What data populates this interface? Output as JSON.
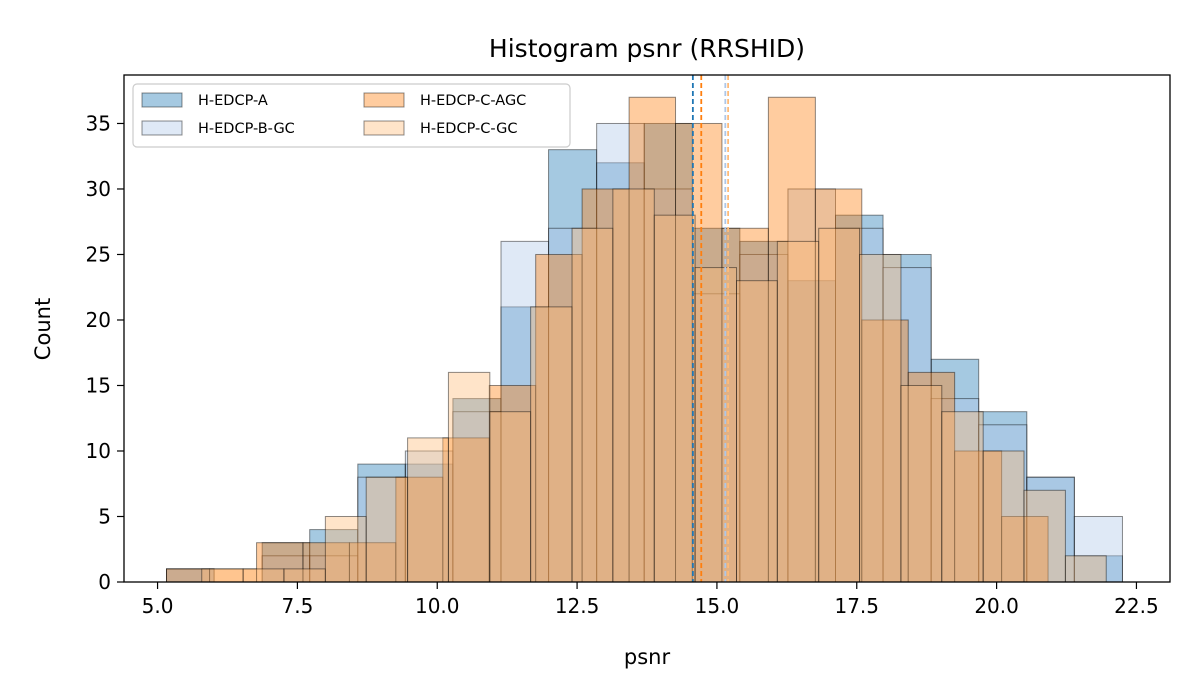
{
  "chart_data": {
    "type": "histogram",
    "title": "Histogram psnr (RRSHID)",
    "xlabel": "psnr",
    "ylabel": "Count",
    "xlim": [
      4.4,
      23.1
    ],
    "ylim": [
      0,
      38.7
    ],
    "xticks": [
      5.0,
      7.5,
      10.0,
      12.5,
      15.0,
      17.5,
      20.0,
      22.5
    ],
    "xtick_labels": [
      "5.0",
      "7.5",
      "10.0",
      "12.5",
      "15.0",
      "17.5",
      "20.0",
      "22.5"
    ],
    "yticks": [
      0,
      5,
      10,
      15,
      20,
      25,
      30,
      35
    ],
    "ytick_labels": [
      "0",
      "5",
      "10",
      "15",
      "20",
      "25",
      "30",
      "35"
    ],
    "legend_location": "upper-left",
    "grid": false,
    "series": [
      {
        "name": "H-EDCP-A",
        "color": "#1f77b4",
        "alpha": 0.4,
        "bin_edges": [
          5.16,
          6.01,
          6.87,
          7.72,
          8.58,
          9.43,
          10.28,
          11.14,
          11.99,
          12.85,
          13.7,
          14.56,
          15.41,
          16.27,
          17.12,
          17.97,
          18.83,
          19.68,
          20.54,
          21.39,
          22.25
        ],
        "counts": [
          1,
          0,
          3,
          4,
          9,
          9,
          14,
          21,
          33,
          32,
          35,
          27,
          26,
          23,
          28,
          25,
          17,
          13,
          8,
          2
        ],
        "mean": 14.57
      },
      {
        "name": "H-EDCP-B-GC",
        "color": "#aec7e8",
        "alpha": 0.4,
        "bin_edges": [
          5.16,
          6.01,
          6.87,
          7.72,
          8.58,
          9.43,
          10.28,
          11.14,
          11.99,
          12.85,
          13.7,
          14.56,
          15.41,
          16.27,
          17.12,
          17.97,
          18.83,
          19.68,
          20.54,
          21.39,
          22.25
        ],
        "counts": [
          1,
          0,
          2,
          2,
          8,
          10,
          13,
          26,
          27,
          35,
          30,
          22,
          25,
          30,
          27,
          24,
          14,
          12,
          8,
          5
        ],
        "mean": 15.15
      },
      {
        "name": "H-EDCP-C-AGC",
        "color": "#ff7f0e",
        "alpha": 0.4,
        "bin_edges": [
          5.16,
          5.93,
          6.77,
          7.6,
          8.43,
          9.26,
          10.1,
          10.93,
          11.76,
          12.59,
          13.43,
          14.26,
          15.09,
          15.92,
          16.76,
          17.59,
          18.42,
          19.25,
          20.09,
          20.92
        ],
        "counts": [
          1,
          1,
          3,
          3,
          3,
          8,
          11,
          15,
          25,
          30,
          37,
          35,
          27,
          37,
          30,
          20,
          16,
          10,
          5
        ],
        "mean": 14.72
      },
      {
        "name": "H-EDCP-C-GC",
        "color": "#ffbb78",
        "alpha": 0.4,
        "bin_edges": [
          5.79,
          6.53,
          7.26,
          8.0,
          8.73,
          9.47,
          10.2,
          10.94,
          11.67,
          12.41,
          13.14,
          13.88,
          14.61,
          15.35,
          16.08,
          16.82,
          17.55,
          18.29,
          19.02,
          19.76,
          20.49,
          21.23,
          21.96
        ],
        "counts": [
          1,
          1,
          1,
          5,
          8,
          11,
          16,
          13,
          21,
          27,
          30,
          28,
          24,
          23,
          26,
          27,
          25,
          15,
          13,
          10,
          7,
          2
        ],
        "mean": 15.2
      }
    ]
  }
}
